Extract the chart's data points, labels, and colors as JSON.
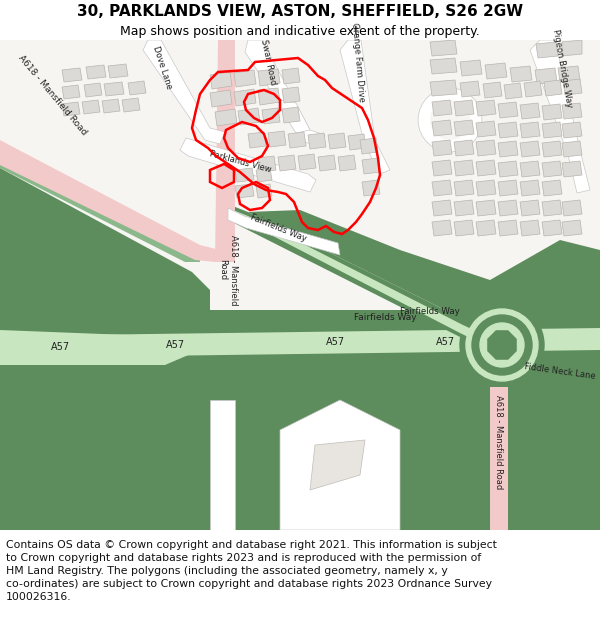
{
  "title_line1": "30, PARKLANDS VIEW, ASTON, SHEFFIELD, S26 2GW",
  "title_line2": "Map shows position and indicative extent of the property.",
  "footer_lines": [
    "Contains OS data © Crown copyright and database right 2021. This information is subject",
    "to Crown copyright and database rights 2023 and is reproduced with the permission of",
    "HM Land Registry. The polygons (including the associated geometry, namely x, y",
    "co-ordinates) are subject to Crown copyright and database rights 2023 Ordnance Survey",
    "100026316."
  ],
  "bg_color": "#ffffff",
  "map_bg": "#f7f5f2",
  "green_dark": "#5d8c5d",
  "green_light": "#c8e6c0",
  "green_med": "#8ab88a",
  "road_pink": "#f2caca",
  "road_white": "#ffffff",
  "road_border": "#c8c8c8",
  "building_fill": "#dcdad6",
  "building_edge": "#b8b4ae",
  "plot_red": "#ff0000",
  "title_fontsize": 11,
  "subtitle_fontsize": 9,
  "footer_fontsize": 7.8,
  "label_fontsize": 6.5
}
